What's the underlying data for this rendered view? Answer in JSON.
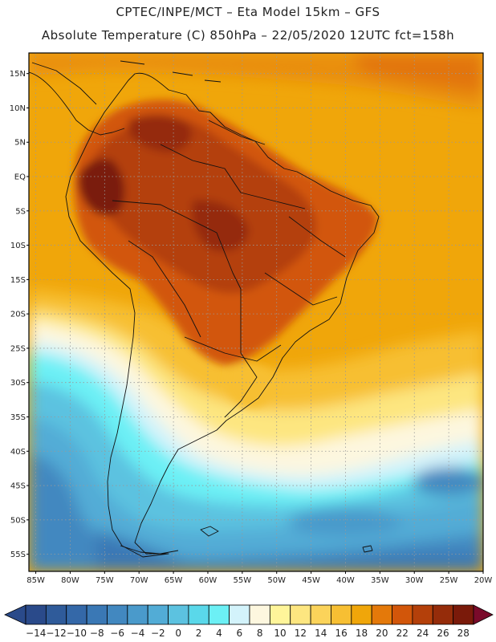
{
  "header": {
    "title_line1": "CPTEC/INPE/MCT –  Eta Model 15km – GFS",
    "title_line2": "Absolute Temperature (C) 850hPa – 22/05/2020 12UTC fct=158h"
  },
  "map": {
    "lat_range": [
      18,
      -57.5
    ],
    "lon_range": [
      -86,
      -20
    ],
    "lat_ticks": [
      "15N",
      "10N",
      "5N",
      "EQ",
      "5S",
      "10S",
      "15S",
      "20S",
      "25S",
      "30S",
      "35S",
      "40S",
      "45S",
      "50S",
      "55S"
    ],
    "lat_values": [
      15,
      10,
      5,
      0,
      -5,
      -10,
      -15,
      -20,
      -25,
      -30,
      -35,
      -40,
      -45,
      -50,
      -55
    ],
    "lon_ticks": [
      "85W",
      "80W",
      "75W",
      "70W",
      "65W",
      "60W",
      "55W",
      "50W",
      "45W",
      "40W",
      "35W",
      "30W",
      "25W",
      "20W"
    ],
    "lon_values": [
      -85,
      -80,
      -75,
      -70,
      -65,
      -60,
      -55,
      -50,
      -45,
      -40,
      -35,
      -30,
      -25,
      -20
    ],
    "ocean_color": "#f0a60a",
    "continent_color": "#b44f0c"
  },
  "colorbar": {
    "labels": [
      "-14",
      "-12",
      "-10",
      "-8",
      "-6",
      "-4",
      "-2",
      "0",
      "2",
      "4",
      "6",
      "8",
      "10",
      "12",
      "14",
      "16",
      "18",
      "20",
      "22",
      "24",
      "26",
      "28"
    ],
    "colors": [
      "#2a4a8a",
      "#2f5b9a",
      "#3468a8",
      "#3a78b5",
      "#4288c0",
      "#4a9acb",
      "#52acd6",
      "#5cc2e0",
      "#5ad8ea",
      "#6cf0f5",
      "#d3f3fb",
      "#fdf7df",
      "#fff59a",
      "#fde680",
      "#fbd35a",
      "#f7bf33",
      "#f0a60a",
      "#e4790a",
      "#d2560a",
      "#b4400a",
      "#952c0a",
      "#7a1a0a"
    ]
  }
}
